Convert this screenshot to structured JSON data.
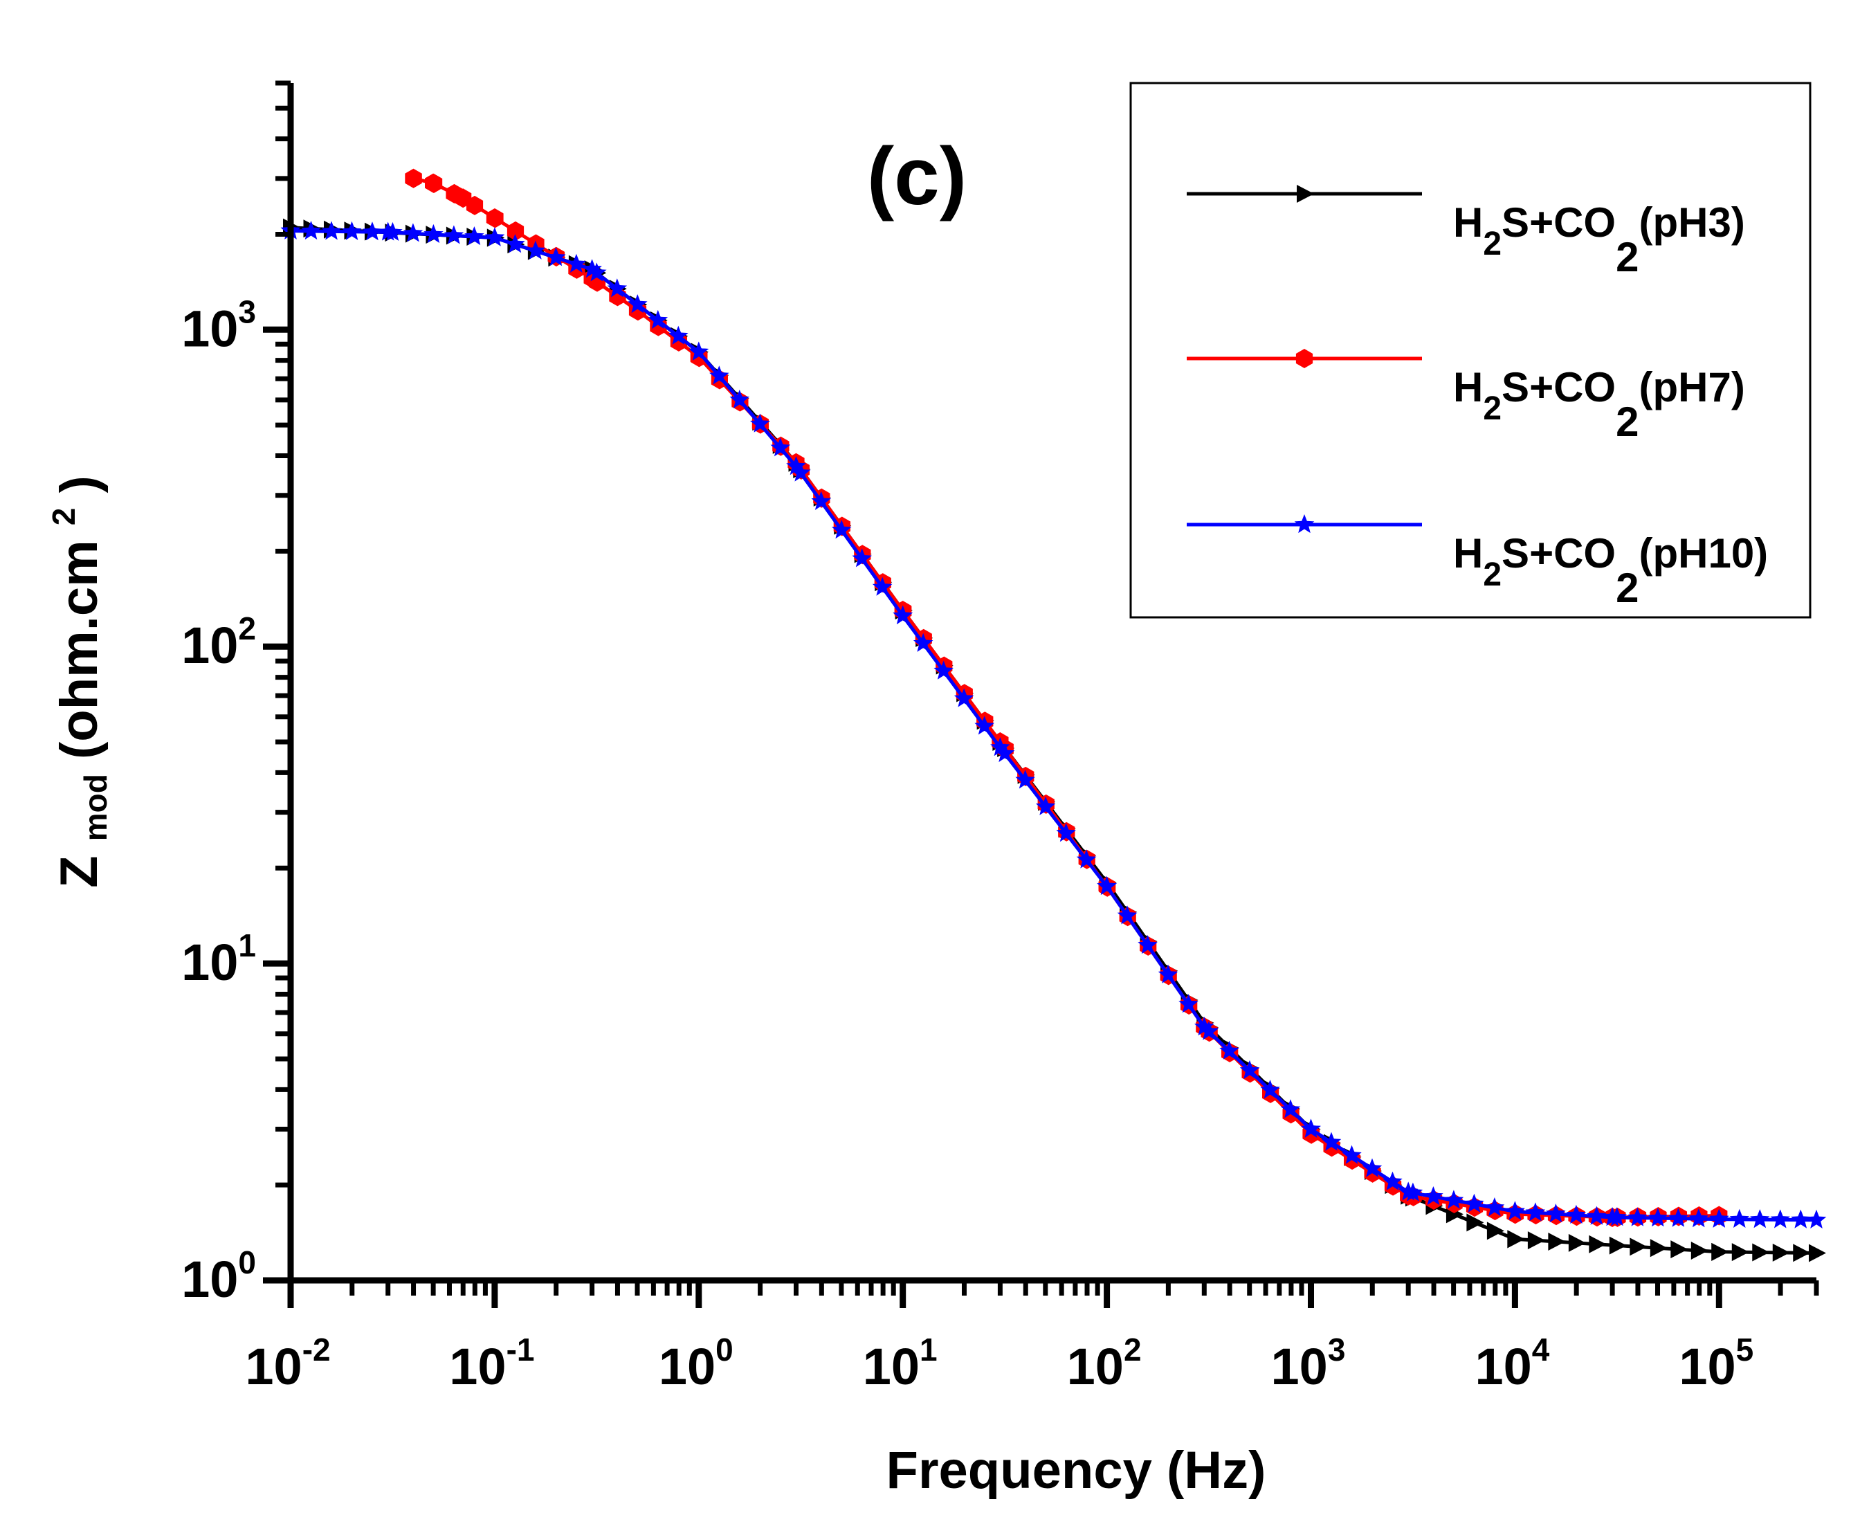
{
  "chart_data": {
    "type": "line",
    "title": "",
    "panel_label": "(c)",
    "xlabel": "Frequency (Hz)",
    "ylabel": {
      "main": "Z",
      "sub": "mod",
      "unit": "(ohm.cm",
      "sup": "2",
      "close": ")"
    },
    "x_scale": "log",
    "y_scale": "log",
    "xlim": [
      0.01,
      300000
    ],
    "ylim": [
      1,
      6000
    ],
    "x_ticks": [
      {
        "value": 0.01,
        "base": "10",
        "exp": "-2"
      },
      {
        "value": 0.1,
        "base": "10",
        "exp": "-1"
      },
      {
        "value": 1,
        "base": "10",
        "exp": "0"
      },
      {
        "value": 10,
        "base": "10",
        "exp": "1"
      },
      {
        "value": 100,
        "base": "10",
        "exp": "2"
      },
      {
        "value": 1000,
        "base": "10",
        "exp": "3"
      },
      {
        "value": 10000,
        "base": "10",
        "exp": "4"
      },
      {
        "value": 100000,
        "base": "10",
        "exp": "5"
      }
    ],
    "y_ticks": [
      {
        "value": 1,
        "base": "10",
        "exp": "0"
      },
      {
        "value": 10,
        "base": "10",
        "exp": "1"
      },
      {
        "value": 100,
        "base": "10",
        "exp": "2"
      },
      {
        "value": 1000,
        "base": "10",
        "exp": "3"
      }
    ],
    "series": [
      {
        "name": "pH3",
        "label": {
          "a": "H",
          "a_sub": "2",
          "b": "S+CO",
          "b_sub": "2",
          "c": "(pH3)"
        },
        "color": "#000000",
        "marker": "triangle-right",
        "x": [
          0.01,
          0.1,
          0.3,
          1,
          3,
          10,
          30,
          100,
          300,
          1000,
          3000,
          10000,
          100000,
          300000
        ],
        "y": [
          2100,
          1950,
          1550,
          850,
          380,
          130,
          50,
          18,
          6.5,
          3.0,
          1.85,
          1.35,
          1.23,
          1.22
        ]
      },
      {
        "name": "pH7",
        "label": {
          "a": "H",
          "a_sub": "2",
          "b": "S+CO",
          "b_sub": "2",
          "c": "(pH7)"
        },
        "color": "#ff0000",
        "marker": "hexagon",
        "x": [
          0.04,
          0.05,
          0.07,
          0.1,
          0.2,
          0.3,
          0.5,
          1,
          3,
          10,
          30,
          100,
          300,
          1000,
          3000,
          10000,
          30000,
          100000
        ],
        "y": [
          3000,
          2900,
          2600,
          2250,
          1700,
          1450,
          1150,
          820,
          380,
          130,
          50,
          17.5,
          6.3,
          2.9,
          1.85,
          1.62,
          1.58,
          1.6
        ]
      },
      {
        "name": "pH10",
        "label": {
          "a": "H",
          "a_sub": "2",
          "b": "S+CO",
          "b_sub": "2",
          "c": "(pH10)"
        },
        "color": "#0000ff",
        "marker": "star",
        "x": [
          0.01,
          0.03,
          0.1,
          0.3,
          1,
          3,
          10,
          30,
          100,
          300,
          1000,
          3000,
          10000,
          30000,
          100000,
          300000
        ],
        "y": [
          2050,
          2030,
          1950,
          1550,
          850,
          370,
          125,
          48,
          17.5,
          6.3,
          3.0,
          1.9,
          1.65,
          1.58,
          1.56,
          1.55
        ]
      }
    ],
    "legend": {
      "position": "top-right"
    },
    "grid": false
  }
}
